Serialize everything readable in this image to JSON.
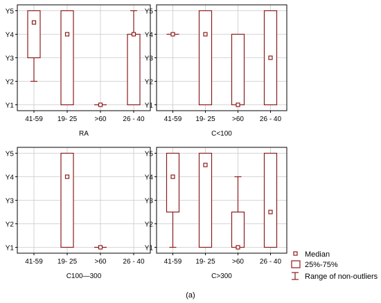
{
  "figure": {
    "caption": "(a)"
  },
  "colors": {
    "box_stroke": "#8b1a1a",
    "grid": "#c8c8c8",
    "axis": "#000000",
    "background": "#ffffff"
  },
  "legend": {
    "median_label": "Median",
    "box_label": "25%-75%",
    "whisker_label": "Range of non-outliers"
  },
  "chart_data": [
    {
      "type": "boxplot",
      "xlabel": "RA",
      "categories": [
        "41-59",
        "19- 25",
        ">60",
        "26 - 40"
      ],
      "y_ticks": [
        "Y1",
        "Y2",
        "Y3",
        "Y4",
        "Y5"
      ],
      "ylim": [
        0.75,
        5.25
      ],
      "grid": true,
      "boxes": [
        {
          "category": "41-59",
          "q1": 3,
          "q3": 5,
          "median": 4.5,
          "min": 2,
          "max": 5
        },
        {
          "category": "19- 25",
          "q1": 1,
          "q3": 5,
          "median": 4,
          "min": 1,
          "max": 5
        },
        {
          "category": ">60",
          "q1": 1,
          "q3": 1,
          "median": 1,
          "min": 1,
          "max": 1
        },
        {
          "category": "26 - 40",
          "q1": 1,
          "q3": 4,
          "median": 4,
          "min": 1,
          "max": 5
        }
      ]
    },
    {
      "type": "boxplot",
      "xlabel": "C<100",
      "categories": [
        "41-59",
        "19- 25",
        ">60",
        "26 - 40"
      ],
      "y_ticks": [
        "Y1",
        "Y2",
        "Y3",
        "Y4",
        "Y5"
      ],
      "ylim": [
        0.75,
        5.25
      ],
      "grid": true,
      "boxes": [
        {
          "category": "41-59",
          "q1": 4,
          "q3": 4,
          "median": 4,
          "min": 4,
          "max": 4
        },
        {
          "category": "19- 25",
          "q1": 1,
          "q3": 5,
          "median": 4,
          "min": 1,
          "max": 5
        },
        {
          "category": ">60",
          "q1": 1,
          "q3": 4,
          "median": 1,
          "min": 1,
          "max": 4
        },
        {
          "category": "26 - 40",
          "q1": 1,
          "q3": 5,
          "median": 3,
          "min": 1,
          "max": 5
        }
      ]
    },
    {
      "type": "boxplot",
      "xlabel": "C100—300",
      "categories": [
        "41-59",
        "19- 25",
        ">60",
        "26 - 40"
      ],
      "y_ticks": [
        "Y1",
        "Y2",
        "Y3",
        "Y4",
        "Y5"
      ],
      "ylim": [
        0.75,
        5.25
      ],
      "grid": true,
      "boxes": [
        {
          "category": "19- 25",
          "q1": 1,
          "q3": 5,
          "median": 4,
          "min": 1,
          "max": 5
        },
        {
          "category": ">60",
          "q1": 1,
          "q3": 1,
          "median": 1,
          "min": 1,
          "max": 1
        }
      ]
    },
    {
      "type": "boxplot",
      "xlabel": "C>300",
      "categories": [
        "41-59",
        "19- 25",
        ">60",
        "26 - 40"
      ],
      "y_ticks": [
        "Y1",
        "Y2",
        "Y3",
        "Y4",
        "Y5"
      ],
      "ylim": [
        0.75,
        5.25
      ],
      "grid": true,
      "boxes": [
        {
          "category": "41-59",
          "q1": 2.5,
          "q3": 5,
          "median": 4,
          "min": 1,
          "max": 5
        },
        {
          "category": "19- 25",
          "q1": 1,
          "q3": 5,
          "median": 4.5,
          "min": 1,
          "max": 5
        },
        {
          "category": ">60",
          "q1": 1,
          "q3": 2.5,
          "median": 1,
          "min": 1,
          "max": 4
        },
        {
          "category": "26 - 40",
          "q1": 1,
          "q3": 5,
          "median": 2.5,
          "min": 1,
          "max": 5
        }
      ]
    }
  ]
}
